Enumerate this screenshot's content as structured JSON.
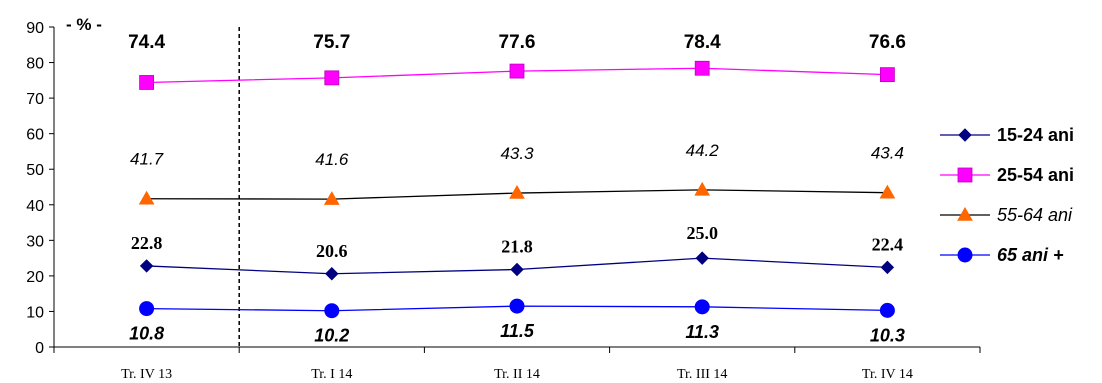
{
  "chart_data": {
    "type": "line",
    "unit_label": "- % -",
    "categories": [
      "Tr. IV 13",
      "Tr. I 14",
      "Tr. II 14",
      "Tr. III 14",
      "Tr. IV 14"
    ],
    "ylim": [
      0,
      90
    ],
    "yticks": [
      "0",
      "10",
      "20",
      "30",
      "40",
      "50",
      "60",
      "70",
      "80",
      "90"
    ],
    "grid": false,
    "legend_position": "right",
    "divider_after_category": 0,
    "series": [
      {
        "name": "15-24 ani",
        "values": [
          22.8,
          20.6,
          21.8,
          25.0,
          22.4
        ],
        "labels": [
          "22.8",
          "20.6",
          "21.8",
          "25.0",
          "22.4"
        ],
        "color": "#000080",
        "marker": "diamond",
        "label_style": "serif-bold",
        "legend_style": "bold"
      },
      {
        "name": "25-54 ani",
        "values": [
          74.4,
          75.7,
          77.6,
          78.4,
          76.6
        ],
        "labels": [
          "74.4",
          "75.7",
          "77.6",
          "78.4",
          "76.6"
        ],
        "color": "#FF00FF",
        "marker": "square",
        "label_style": "sans-bold",
        "legend_style": "bold"
      },
      {
        "name": "55-64 ani",
        "values": [
          41.7,
          41.6,
          43.3,
          44.2,
          43.4
        ],
        "labels": [
          "41.7",
          "41.6",
          "43.3",
          "44.2",
          "43.4"
        ],
        "color": "#FF6600",
        "line_color": "#000000",
        "marker": "triangle",
        "label_style": "sans-italic",
        "legend_style": "italic"
      },
      {
        "name": "65 ani +",
        "values": [
          10.8,
          10.2,
          11.5,
          11.3,
          10.3
        ],
        "labels": [
          "10.8",
          "10.2",
          "11.5",
          "11.3",
          "10.3"
        ],
        "color": "#0000FF",
        "marker": "circle",
        "label_style": "sans-bold-italic",
        "legend_style": "bold-italic"
      }
    ]
  }
}
